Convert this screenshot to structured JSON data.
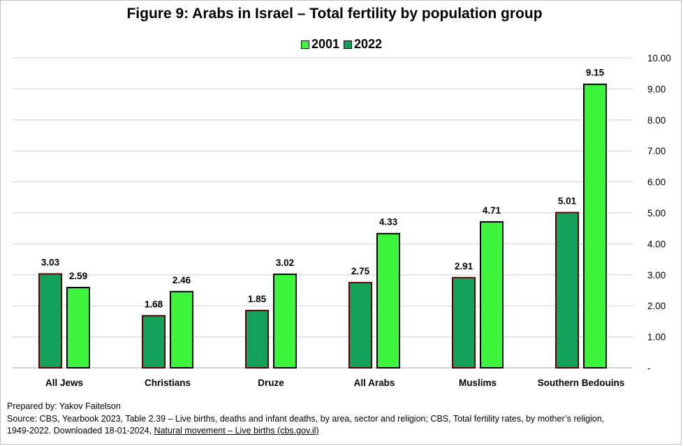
{
  "chart_data": {
    "type": "bar",
    "title": "Figure 9: Arabs in Israel – Total fertility by population group",
    "categories": [
      "All Jews",
      "Christians",
      "Druze",
      "All Arabs",
      "Muslims",
      "Southern Bedouins"
    ],
    "series": [
      {
        "name": "2022",
        "color": "#13a058",
        "values": [
          3.03,
          1.68,
          1.85,
          2.75,
          2.91,
          5.01
        ],
        "value_labels": [
          "3.03",
          "1.68",
          "1.85",
          "2.75",
          "2.91",
          "5.01"
        ]
      },
      {
        "name": "2001",
        "color": "#3df53d",
        "values": [
          2.59,
          2.46,
          3.02,
          4.33,
          4.71,
          9.15
        ],
        "value_labels": [
          "2.59",
          "2.46",
          "3.02",
          "4.33",
          "4.71",
          "9.15"
        ]
      }
    ],
    "legend_order": [
      "2001",
      "2022"
    ],
    "legend_position": "top",
    "ylim": [
      0,
      10
    ],
    "y_ticks": [
      0,
      1,
      2,
      3,
      4,
      5,
      6,
      7,
      8,
      9,
      10
    ],
    "y_tick_labels": [
      "-",
      "1.00",
      "2.00",
      "3.00",
      "4.00",
      "5.00",
      "6.00",
      "7.00",
      "8.00",
      "9.00",
      "10.00"
    ],
    "y_axis_side": "right",
    "grid": true,
    "xlabel": "",
    "ylabel": ""
  },
  "footer": {
    "prepared_by": "Prepared by: Yakov Faitelson",
    "source_line1": "Source: CBS, Yearbook 2023,  Table 2.39 – Live births, deaths and infant deaths, by area, sector and religion; CBS, Total fertility rates, by mother’s religion,",
    "source_line2": "1949-2022.   Downloaded 18-01-2024, ",
    "source_link": "Natural movement – Live births (cbs.gov.il)"
  }
}
